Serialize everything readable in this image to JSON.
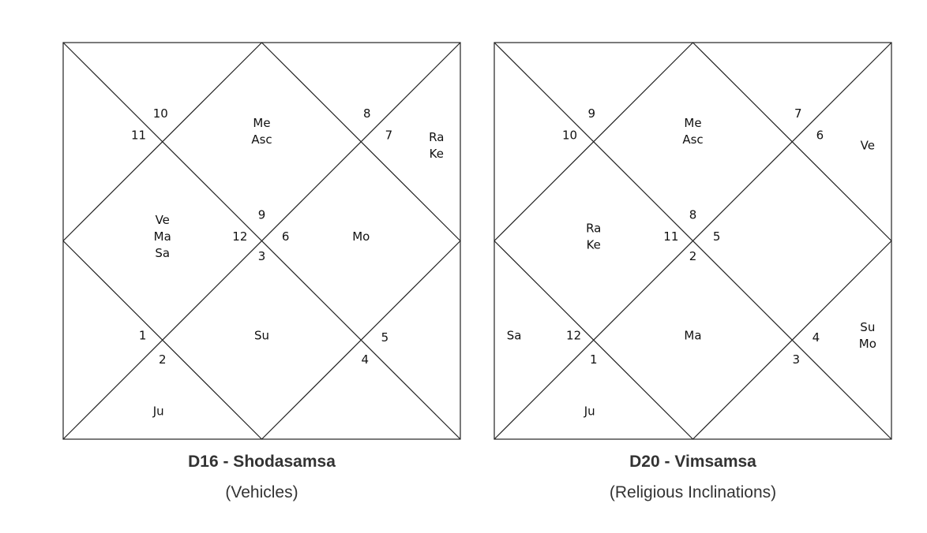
{
  "charts": [
    {
      "title": "D16 - Shodasamsa",
      "subtitle": "(Vehicles)",
      "houses": [
        {
          "num": "9",
          "planets": [
            "Me",
            "Asc"
          ]
        },
        {
          "num": "10",
          "planets": []
        },
        {
          "num": "11",
          "planets": []
        },
        {
          "num": "12",
          "planets": [
            "Ve",
            "Ma",
            "Sa"
          ]
        },
        {
          "num": "1",
          "planets": []
        },
        {
          "num": "2",
          "planets": [
            "Ju"
          ]
        },
        {
          "num": "3",
          "planets": [
            "Su"
          ]
        },
        {
          "num": "4",
          "planets": []
        },
        {
          "num": "5",
          "planets": []
        },
        {
          "num": "6",
          "planets": [
            "Mo"
          ]
        },
        {
          "num": "7",
          "planets": [
            "Ra",
            "Ke"
          ]
        },
        {
          "num": "8",
          "planets": []
        }
      ]
    },
    {
      "title": "D20 - Vimsamsa",
      "subtitle": "(Religious Inclinations)",
      "houses": [
        {
          "num": "8",
          "planets": [
            "Me",
            "Asc"
          ]
        },
        {
          "num": "9",
          "planets": []
        },
        {
          "num": "10",
          "planets": []
        },
        {
          "num": "11",
          "planets": [
            "Ra",
            "Ke"
          ]
        },
        {
          "num": "12",
          "planets": [
            "Sa"
          ]
        },
        {
          "num": "1",
          "planets": [
            "Ju"
          ]
        },
        {
          "num": "2",
          "planets": [
            "Ma"
          ]
        },
        {
          "num": "3",
          "planets": []
        },
        {
          "num": "4",
          "planets": [
            "Su",
            "Mo"
          ]
        },
        {
          "num": "5",
          "planets": []
        },
        {
          "num": "6",
          "planets": [
            "Ve"
          ]
        },
        {
          "num": "7",
          "planets": []
        }
      ]
    }
  ]
}
